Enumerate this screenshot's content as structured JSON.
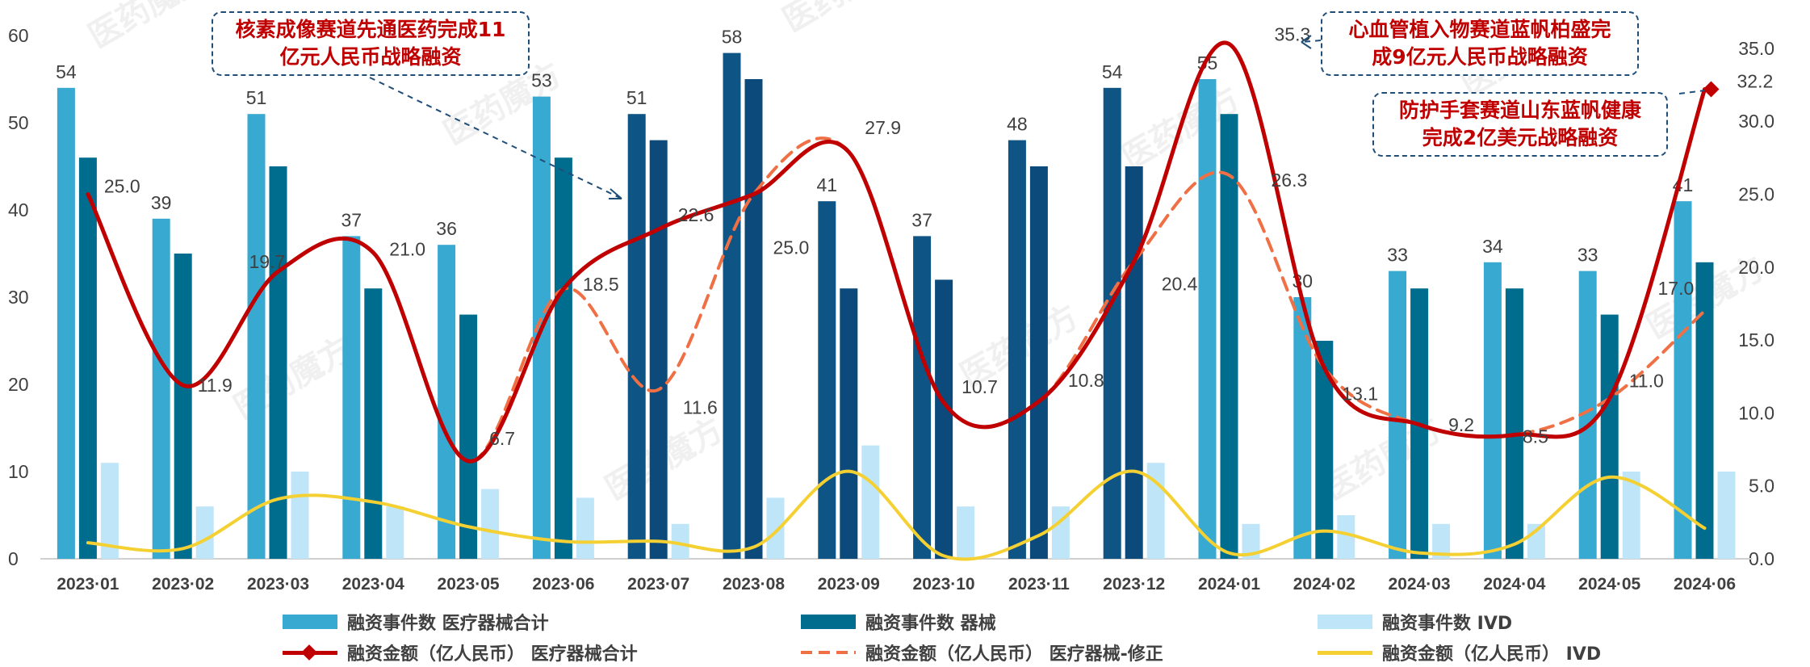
{
  "chart_data": {
    "type": "bar",
    "categories": [
      "2023-01",
      "2023-02",
      "2023-03",
      "2023-04",
      "2023-05",
      "2023-06",
      "2023-07",
      "2023-08",
      "2023-09",
      "2023-10",
      "2023-11",
      "2023-12",
      "2024-01",
      "2024-02",
      "2024-03",
      "2024-04",
      "2024-05",
      "2024-06"
    ],
    "y_left": {
      "ylim": [
        0,
        60
      ],
      "ticks": [
        "0",
        "10",
        "20",
        "30",
        "40",
        "50",
        "60"
      ]
    },
    "y_right": {
      "ylim": [
        0,
        35
      ],
      "ticks": [
        "0.0",
        "5.0",
        "10.0",
        "15.0",
        "20.0",
        "25.0",
        "30.0",
        "35.0"
      ]
    },
    "bar_series": [
      {
        "name": "融资事件数 医疗器械合计",
        "color": "#38a9d0",
        "values": [
          54,
          39,
          51,
          37,
          36,
          53,
          51,
          58,
          41,
          37,
          48,
          54,
          55,
          30,
          33,
          34,
          33,
          41
        ],
        "labels": [
          "54",
          "39",
          "51",
          "37",
          "36",
          "53",
          "51",
          "58",
          "41",
          "37",
          "48",
          "54",
          "55",
          "30",
          "33",
          "34",
          "33",
          "41"
        ]
      },
      {
        "name": "融资事件数 器械",
        "color": "#006d8f",
        "values": [
          46,
          35,
          45,
          31,
          28,
          46,
          48,
          55,
          31,
          32,
          45,
          45,
          51,
          25,
          31,
          31,
          28,
          34
        ]
      },
      {
        "name": "融资事件数 IVD",
        "color": "#bfe6f8",
        "values": [
          11,
          6,
          10,
          6,
          8,
          7,
          4,
          7,
          13,
          6,
          6,
          11,
          4,
          5,
          4,
          4,
          10,
          10
        ]
      }
    ],
    "line_series": [
      {
        "name": "融资金额（亿人民币） 医疗器械合计",
        "color": "#c00000",
        "style": "solid",
        "values": [
          25.0,
          11.9,
          19.7,
          21.0,
          6.7,
          18.5,
          22.6,
          25.0,
          27.9,
          10.7,
          10.8,
          20.4,
          35.3,
          13.1,
          9.2,
          8.5,
          11.0,
          32.2
        ],
        "labels": [
          "25.0",
          "11.9",
          "19.7",
          "21.0",
          "6.7",
          "18.5",
          "22.6",
          "25.0",
          "27.9",
          "10.7",
          "10.8",
          "20.4",
          "35.3",
          "13.1",
          "9.2",
          "8.5",
          "11.0",
          "32.2"
        ]
      },
      {
        "name": "融资金额（亿人民币） 医疗器械-修正",
        "color": "#f07046",
        "style": "dashed",
        "values": [
          25.0,
          11.9,
          19.7,
          21.0,
          6.7,
          18.5,
          11.6,
          25.0,
          27.9,
          10.7,
          10.8,
          20.4,
          26.3,
          13.1,
          9.2,
          8.5,
          11.0,
          17.0
        ],
        "labels": [
          "",
          "",
          "",
          "",
          "",
          "",
          "11.6",
          "",
          "",
          "",
          "",
          "",
          "26.3",
          "",
          "",
          "",
          "",
          "17.0"
        ]
      },
      {
        "name": "融资金额（亿人民币） IVD",
        "color": "#f5d033",
        "style": "solid",
        "values": [
          1.1,
          0.7,
          4.1,
          3.9,
          2.2,
          1.2,
          1.2,
          0.8,
          6.0,
          0.2,
          1.6,
          6.0,
          0.4,
          1.9,
          0.4,
          1.0,
          5.6,
          2.1
        ]
      }
    ],
    "callouts": [
      {
        "lines": [
          "核素成像赛道先通医药完成11",
          "亿元人民币战略融资"
        ]
      },
      {
        "lines": [
          "心血管植入物赛道蓝帆柏盛完",
          "成9亿元人民币战略融资"
        ]
      },
      {
        "lines": [
          "防护手套赛道山东蓝帆健康",
          "完成2亿美元战略融资"
        ]
      }
    ],
    "legend": {
      "position": "bottom",
      "items": [
        {
          "label": "融资事件数 医疗器械合计",
          "kind": "box",
          "color": "#38a9d0"
        },
        {
          "label": "融资事件数 器械",
          "kind": "box",
          "color": "#006d8f"
        },
        {
          "label": "融资事件数 IVD",
          "kind": "box",
          "color": "#bfe6f8"
        },
        {
          "label": "融资金额（亿人民币） 医疗器械合计",
          "kind": "line-diamond",
          "color": "#c00000"
        },
        {
          "label": "融资金额（亿人民币） 医疗器械-修正",
          "kind": "dashed",
          "color": "#f07046"
        },
        {
          "label": "融资金额（亿人民币） IVD",
          "kind": "line",
          "color": "#f5d033"
        }
      ]
    },
    "grid": false,
    "watermark": "医药魔方"
  }
}
